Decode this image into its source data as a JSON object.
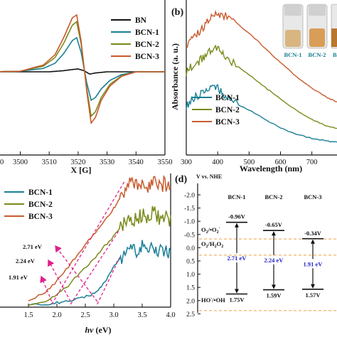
{
  "colors": {
    "BN": "#111111",
    "BCN-1": "#1a7f96",
    "BCN-2": "#7a8a1c",
    "BCN-3": "#c85a2c",
    "arrow": "#e0208a",
    "dashed": "#f0a040",
    "gap": "#2222cc"
  },
  "chart_data": [
    {
      "panel": "a",
      "type": "line",
      "xlabel": "X [G]",
      "ylabel": "",
      "xlim": [
        3490,
        3550
      ],
      "xticks": [
        "3500",
        "3510",
        "3520",
        "3530",
        "3540",
        "3550"
      ],
      "legend": {
        "position": "top-right"
      },
      "series": [
        {
          "name": "BN",
          "color": "BN",
          "x": [
            3490,
            3500,
            3510,
            3515,
            3518,
            3520,
            3522,
            3524,
            3526,
            3530,
            3540,
            3550
          ],
          "y": [
            0,
            0,
            0,
            0.02,
            0.04,
            0.05,
            0.02,
            -0.04,
            -0.02,
            0,
            0,
            0
          ]
        },
        {
          "name": "BCN-1",
          "color": "BCN-1",
          "x": [
            3490,
            3500,
            3508,
            3512,
            3515,
            3518,
            3519.5,
            3521,
            3523,
            3524.5,
            3526,
            3528,
            3531,
            3535,
            3540,
            3550
          ],
          "y": [
            0,
            0.01,
            0.06,
            0.15,
            0.32,
            0.55,
            0.6,
            0.35,
            -0.2,
            -0.5,
            -0.45,
            -0.3,
            -0.15,
            -0.05,
            0,
            0
          ]
        },
        {
          "name": "BCN-2",
          "color": "BCN-2",
          "x": [
            3490,
            3500,
            3508,
            3512,
            3515,
            3518,
            3519.5,
            3521,
            3523,
            3524.5,
            3526,
            3528,
            3531,
            3535,
            3540,
            3550
          ],
          "y": [
            0,
            0.01,
            0.1,
            0.25,
            0.5,
            0.82,
            0.88,
            0.5,
            -0.3,
            -0.78,
            -0.7,
            -0.45,
            -0.22,
            -0.07,
            0,
            0
          ]
        },
        {
          "name": "BCN-3",
          "color": "BCN-3",
          "x": [
            3490,
            3500,
            3508,
            3512,
            3515,
            3518,
            3519.5,
            3521,
            3523,
            3524.5,
            3526,
            3528,
            3531,
            3535,
            3540,
            3550
          ],
          "y": [
            0,
            0.01,
            0.12,
            0.3,
            0.6,
            0.95,
            1.0,
            0.55,
            -0.35,
            -0.9,
            -0.8,
            -0.5,
            -0.25,
            -0.08,
            0,
            0
          ]
        }
      ]
    },
    {
      "panel": "b",
      "type": "line",
      "xlabel": "Wavelength (nm)",
      "ylabel": "Absorbance (a. u.)",
      "xlim": [
        300,
        780
      ],
      "xticks": [
        "300",
        "400",
        "500",
        "600",
        "700"
      ],
      "legend": {
        "position": "bottom-left"
      },
      "inset_labels": [
        "BCN-1",
        "BCN-2",
        "BCN-3"
      ],
      "series": [
        {
          "name": "BCN-1",
          "color": "BCN-1",
          "x": [
            300,
            320,
            340,
            360,
            380,
            400,
            420,
            450,
            500,
            550,
            600,
            650,
            700,
            750,
            780
          ],
          "y": [
            0.3,
            0.35,
            0.38,
            0.42,
            0.46,
            0.43,
            0.38,
            0.33,
            0.27,
            0.2,
            0.14,
            0.09,
            0.06,
            0.04,
            0.03
          ]
        },
        {
          "name": "BCN-2",
          "color": "BCN-2",
          "x": [
            300,
            320,
            340,
            360,
            380,
            400,
            420,
            450,
            500,
            550,
            600,
            650,
            700,
            750,
            780
          ],
          "y": [
            0.55,
            0.6,
            0.63,
            0.67,
            0.72,
            0.72,
            0.68,
            0.62,
            0.53,
            0.44,
            0.35,
            0.27,
            0.2,
            0.15,
            0.13
          ]
        },
        {
          "name": "BCN-3",
          "color": "BCN-3",
          "x": [
            300,
            320,
            340,
            360,
            380,
            400,
            420,
            450,
            500,
            550,
            600,
            650,
            700,
            750,
            780
          ],
          "y": [
            0.75,
            0.8,
            0.85,
            0.9,
            0.95,
            0.98,
            0.97,
            0.93,
            0.84,
            0.73,
            0.62,
            0.52,
            0.43,
            0.36,
            0.33
          ]
        }
      ]
    },
    {
      "panel": "c",
      "type": "line",
      "xlabel": "hv (eV)",
      "ylabel": "",
      "xlim": [
        1.0,
        4.0
      ],
      "xticks": [
        "1.5",
        "2.0",
        "2.5",
        "3.0",
        "3.5",
        "4.0"
      ],
      "legend": {
        "position": "top-left"
      },
      "series": [
        {
          "name": "BCN-1",
          "color": "BCN-1",
          "x": [
            1.5,
            1.8,
            2.0,
            2.2,
            2.4,
            2.6,
            2.7,
            2.8,
            2.9,
            3.0,
            3.1,
            3.2,
            3.3,
            3.4,
            3.5,
            3.6,
            3.7,
            3.8,
            3.9,
            4.0
          ],
          "y": [
            0.0,
            0.0,
            0.01,
            0.02,
            0.04,
            0.06,
            0.08,
            0.12,
            0.18,
            0.24,
            0.29,
            0.33,
            0.37,
            0.35,
            0.38,
            0.36,
            0.38,
            0.35,
            0.36,
            0.33
          ]
        },
        {
          "name": "BCN-2",
          "color": "BCN-2",
          "x": [
            1.5,
            1.8,
            2.0,
            2.2,
            2.4,
            2.6,
            2.8,
            3.0,
            3.1,
            3.2,
            3.3,
            3.4,
            3.5,
            3.6,
            3.7,
            3.8,
            3.9,
            4.0
          ],
          "y": [
            0.0,
            0.02,
            0.06,
            0.12,
            0.2,
            0.27,
            0.36,
            0.44,
            0.49,
            0.53,
            0.55,
            0.54,
            0.58,
            0.56,
            0.59,
            0.55,
            0.57,
            0.53
          ]
        },
        {
          "name": "BCN-3",
          "color": "BCN-3",
          "x": [
            1.5,
            1.8,
            2.0,
            2.2,
            2.4,
            2.6,
            2.8,
            3.0,
            3.1,
            3.2,
            3.3,
            3.4,
            3.5,
            3.6,
            3.7,
            3.8,
            3.9,
            4.0
          ],
          "y": [
            0.02,
            0.08,
            0.15,
            0.24,
            0.34,
            0.43,
            0.52,
            0.62,
            0.68,
            0.73,
            0.8,
            0.76,
            0.8,
            0.77,
            0.81,
            0.76,
            0.78,
            0.73
          ]
        }
      ],
      "annotations": [
        {
          "text": "2.71 eV",
          "x": 2.71
        },
        {
          "text": "2.24 eV",
          "x": 2.24
        },
        {
          "text": "1.91 eV",
          "x": 1.91
        }
      ]
    },
    {
      "panel": "d",
      "type": "diagram",
      "ylabel": "V vs. NHE",
      "ylim": [
        -2.5,
        2.5
      ],
      "yticks": [
        "-2.5",
        "-2.0",
        "-1.5",
        "-1.0",
        "-0.5",
        "0.0",
        "0.5",
        "1.0",
        "1.5",
        "2.0",
        "2.5"
      ],
      "columns": [
        {
          "name": "BCN-1",
          "cb": -0.96,
          "vb": 1.75,
          "cb_label": "-0.96V",
          "vb_label": "1.75V",
          "gap_label": "2.71 eV"
        },
        {
          "name": "BCN-2",
          "cb": -0.65,
          "vb": 1.59,
          "cb_label": "-0.65V",
          "vb_label": "1.59V",
          "gap_label": "2.24 eV"
        },
        {
          "name": "BCN-3",
          "cb": -0.34,
          "vb": 1.57,
          "cb_label": "-0.34V",
          "vb_label": "1.57V",
          "gap_label": "1.91 eV"
        }
      ],
      "reference_levels": [
        {
          "label": "O2/•O2-",
          "value": -0.33
        },
        {
          "label": "O2/H2O2",
          "value": 0.28
        },
        {
          "label": "HO-/•OH",
          "value": 2.38
        }
      ]
    }
  ],
  "panel_labels": {
    "b": "(b)",
    "d": "(d)"
  },
  "inset": {
    "labels": [
      "BCN-1",
      "BCN-2",
      "B"
    ]
  },
  "panel_d_text": {
    "axis_title": "V vs. NHE",
    "ref1_main": "O",
    "ref1_sub": "2",
    "ref1_rest": "/•O",
    "ref1_sub2": "2",
    "ref1_sup": "-",
    "ref2_main": "O",
    "ref2_sub": "2",
    "ref2_mid": "/H",
    "ref2_sub2": "2",
    "ref2_mid2": "O",
    "ref2_sub3": "2",
    "ref3_main": "HO",
    "ref3_sup": "-",
    "ref3_rest": "/•OH"
  },
  "panel_c_text": {
    "xlabel_main": "hv",
    "xlabel_unit": " (eV)"
  }
}
